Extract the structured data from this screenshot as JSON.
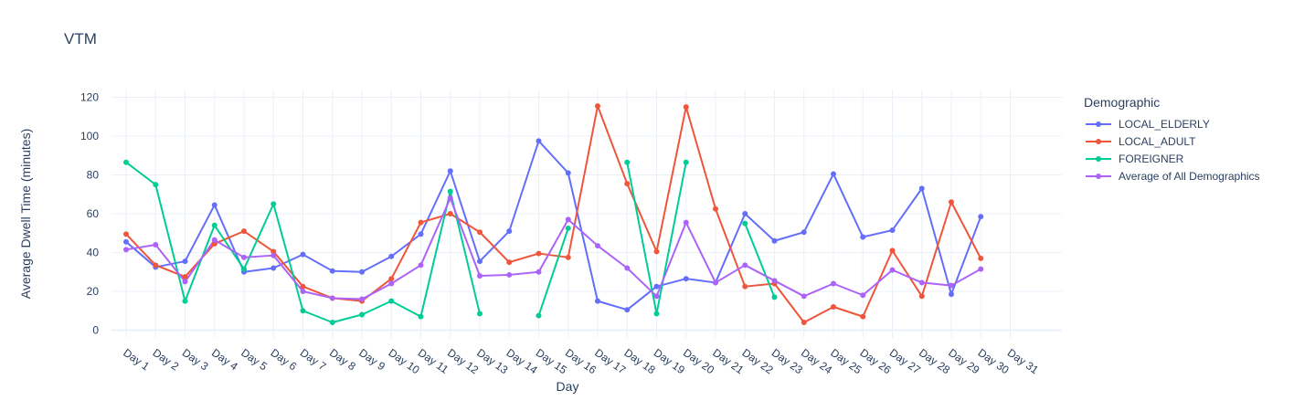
{
  "chart_data": {
    "type": "line",
    "title": "VTM",
    "xlabel": "Day",
    "ylabel": "Average Dwell Time (minutes)",
    "ylim": [
      -4,
      124
    ],
    "yticks": [
      0,
      20,
      40,
      60,
      80,
      100,
      120
    ],
    "grid": true,
    "legend_title": "Demographic",
    "legend_position": "top-right",
    "categories": [
      "Day 1",
      "Day 2",
      "Day 3",
      "Day 4",
      "Day 5",
      "Day 6",
      "Day 7",
      "Day 8",
      "Day 9",
      "Day 10",
      "Day 11",
      "Day 12",
      "Day 13",
      "Day 14",
      "Day 15",
      "Day 16",
      "Day 17",
      "Day 18",
      "Day 19",
      "Day 20",
      "Day 21",
      "Day 22",
      "Day 23",
      "Day 24",
      "Day 25",
      "Day 26",
      "Day 27",
      "Day 28",
      "Day 29",
      "Day 30",
      "Day 31"
    ],
    "series": [
      {
        "name": "LOCAL_ELDERLY",
        "color": "#636efa",
        "values": [
          45.5,
          32.5,
          35.5,
          64.5,
          30,
          32,
          39,
          30.5,
          30,
          38,
          49.5,
          82,
          35.5,
          51,
          97.5,
          81,
          15,
          10.5,
          22.5,
          26.5,
          24.5,
          60,
          46,
          50.5,
          80.5,
          48,
          51.5,
          73,
          18.5,
          58.5,
          null
        ]
      },
      {
        "name": "LOCAL_ADULT",
        "color": "#ef553b",
        "values": [
          49.5,
          33.5,
          27.5,
          44.5,
          51,
          40.5,
          22.5,
          16.5,
          15,
          26.5,
          55.5,
          60,
          50.5,
          35,
          39.5,
          37.5,
          115.5,
          75.5,
          40.5,
          115,
          62.5,
          22.5,
          24,
          4,
          12,
          7,
          41,
          17.5,
          66,
          37,
          null
        ]
      },
      {
        "name": "FOREIGNER",
        "color": "#00cc96",
        "values": [
          86.5,
          75,
          15,
          54,
          31.5,
          65,
          10,
          4,
          8,
          15,
          7,
          71.5,
          8.5,
          null,
          7.5,
          52.5,
          null,
          86.5,
          8.5,
          86.5,
          null,
          55,
          17,
          null,
          null,
          null,
          null,
          null,
          null,
          null,
          null
        ]
      },
      {
        "name": "Average of All Demographics",
        "color": "#ab63fa",
        "values": [
          41.5,
          44,
          25,
          46.5,
          37.5,
          38.5,
          20,
          16.5,
          16,
          24,
          33.5,
          68,
          28,
          28.5,
          30,
          57,
          43.5,
          32,
          17.5,
          55.5,
          24.5,
          33.5,
          25.5,
          17.5,
          24,
          18,
          31,
          24.5,
          23,
          31.5,
          null
        ]
      }
    ]
  }
}
